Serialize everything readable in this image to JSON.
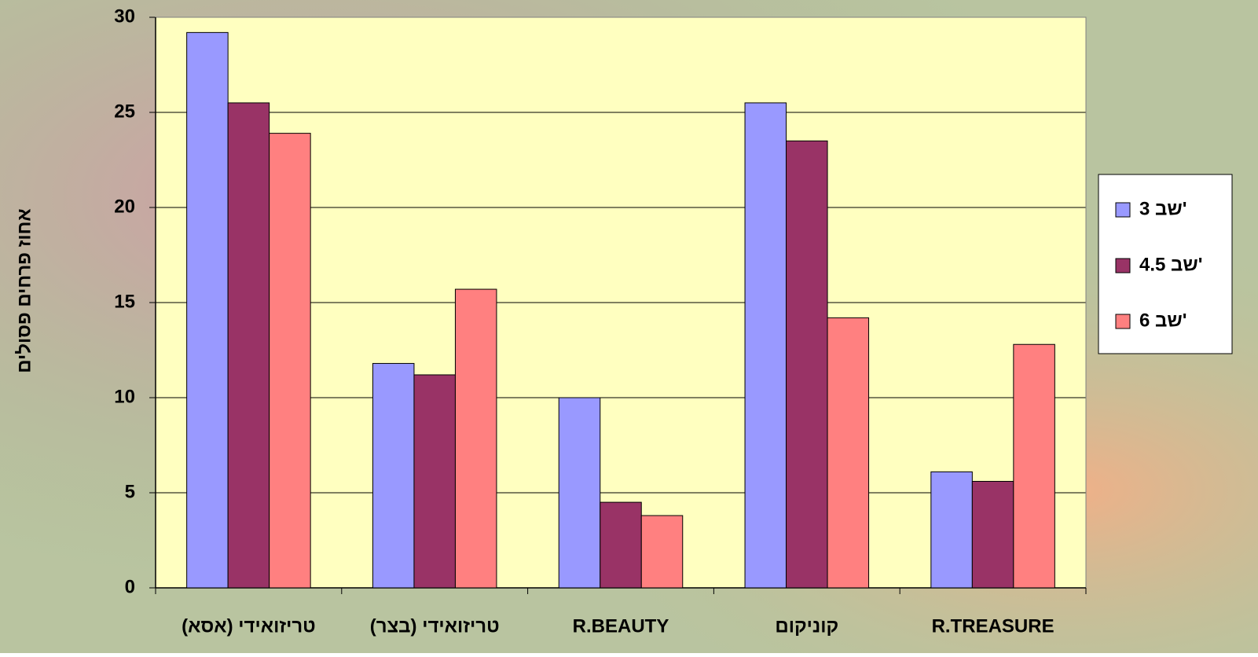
{
  "chart_data": {
    "type": "bar",
    "y_label": "אחוז פרחים פסולים",
    "categories": [
      "טריזואידי (אסא)",
      "טריזואידי (בצר)",
      "R.BEAUTY",
      "קוניקום",
      "R.TREASURE"
    ],
    "series": [
      {
        "name": "3 שב'",
        "color": "#9999ff",
        "values": [
          29.2,
          11.8,
          10.0,
          25.5,
          6.1
        ]
      },
      {
        "name": "4.5 שב'",
        "color": "#993366",
        "values": [
          25.5,
          11.2,
          4.5,
          23.5,
          5.6
        ]
      },
      {
        "name": "6 שב'",
        "color": "#ff8080",
        "values": [
          23.9,
          15.7,
          3.8,
          14.2,
          12.8
        ]
      }
    ],
    "ylim": [
      0,
      30
    ],
    "yticks": [
      0,
      5,
      10,
      15,
      20,
      25,
      30
    ],
    "grid": true,
    "legend": "right"
  }
}
